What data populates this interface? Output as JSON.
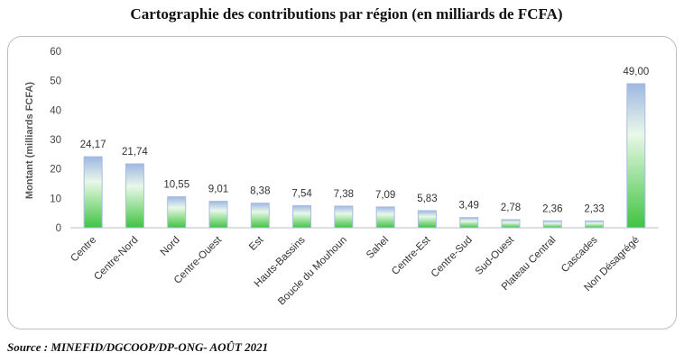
{
  "chart_data": {
    "type": "bar",
    "title": "Cartographie des contributions par région (en milliards de FCFA)",
    "ylabel": "Montant (milliards FCFA)",
    "xlabel": "",
    "ylim": [
      0,
      60
    ],
    "yticks": [
      0,
      10,
      20,
      30,
      40,
      50,
      60
    ],
    "grid": false,
    "categories": [
      "Centre",
      "Centre-Nord",
      "Nord",
      "Centre-Ouest",
      "Est",
      "Hauts-Bassins",
      "Boucle du Mouhoun",
      "Sahel",
      "Centre-Est",
      "Centre-Sud",
      "Sud-Ouest",
      "Plateau Central",
      "Cascades",
      "Non Désagrégé"
    ],
    "values": [
      24.17,
      21.74,
      10.55,
      9.01,
      8.38,
      7.54,
      7.38,
      7.09,
      5.83,
      3.49,
      2.78,
      2.36,
      2.33,
      49.0
    ],
    "value_labels": [
      "24,17",
      "21,74",
      "10,55",
      "9,01",
      "8,38",
      "7,54",
      "7,38",
      "7,09",
      "5,83",
      "3,49",
      "2,78",
      "2,36",
      "2,33",
      "49,00"
    ],
    "colors": {
      "bar_base": "#3fc43f",
      "bar_mid": "#e9f8e9",
      "bar_top": "#9fb7e3"
    }
  },
  "source": "Source : MINEFID/DGCOOP/DP-ONG- AOÛT 2021"
}
